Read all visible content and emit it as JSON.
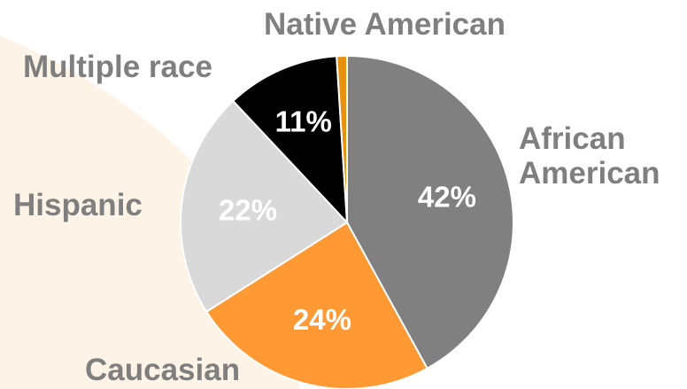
{
  "chart_data": {
    "type": "pie",
    "slices": [
      {
        "label": "African American",
        "value": 42,
        "value_label": "42%",
        "color": "#808080",
        "label_color": "#ffffff"
      },
      {
        "label": "Caucasian",
        "value": 24,
        "value_label": "24%",
        "color": "#ff9933",
        "label_color": "#ffffff"
      },
      {
        "label": "Hispanic",
        "value": 22,
        "value_label": "22%",
        "color": "#d9d9d9",
        "label_color": "#ffffff"
      },
      {
        "label": "Multiple race",
        "value": 11,
        "value_label": "11%",
        "color": "#000000",
        "label_color": "#ffffff"
      },
      {
        "label": "Native American",
        "value": 1,
        "value_label": "",
        "color": "#e8900f",
        "label_color": "#ffffff"
      }
    ],
    "start": "12 o'clock",
    "direction": "clockwise",
    "category_label_color": "#7f7f7f"
  },
  "labels": {
    "african_american_line1": "African",
    "african_american_line2": "American",
    "native_american": "Native American",
    "multiple_race": "Multiple race",
    "hispanic": "Hispanic",
    "caucasian": "Caucasian"
  },
  "background_color": "#fdf3e6"
}
